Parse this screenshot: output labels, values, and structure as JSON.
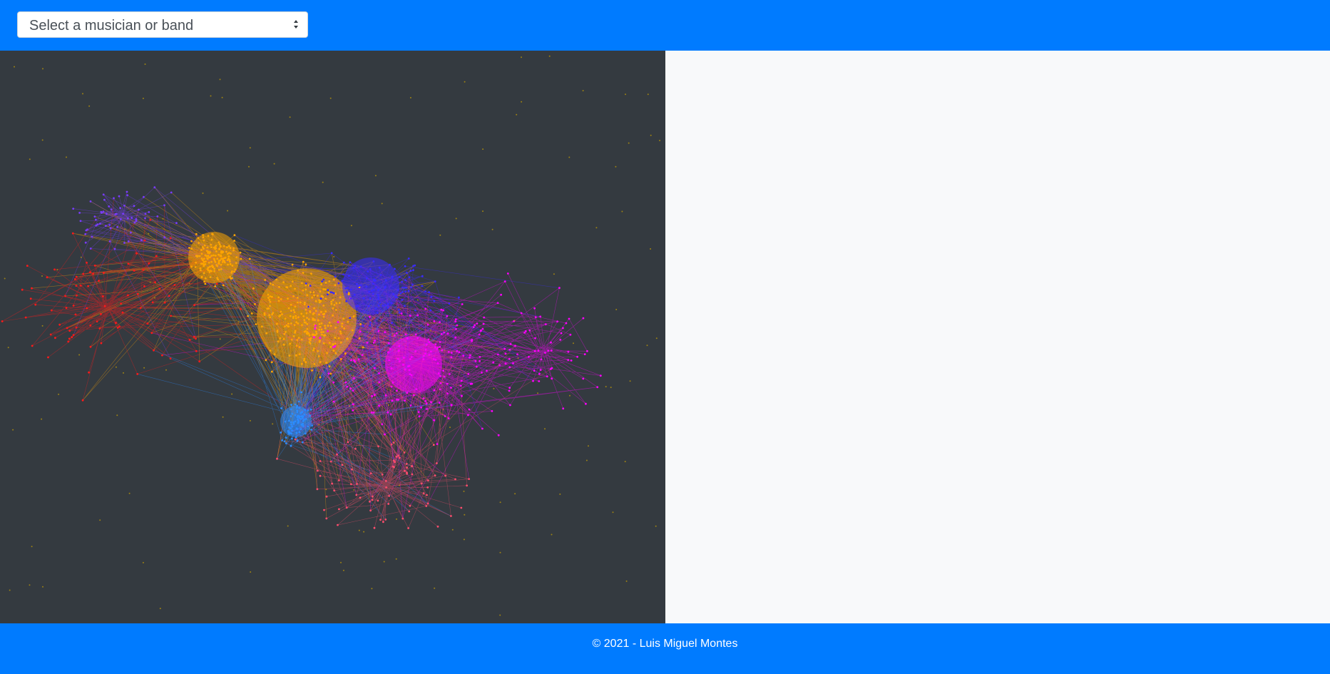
{
  "header": {
    "select": {
      "selected_label": "Select a musician or band",
      "caret_icon": "updown-caret-icon"
    }
  },
  "graph": {
    "background": "#343a40",
    "community_colors": [
      "#ffa500",
      "#ff00ff",
      "#3a2bff",
      "#ff1a1a",
      "#2b8cff",
      "#ff4d6d",
      "#7a3cff",
      "#c8a000"
    ]
  },
  "footer": {
    "text": "© 2021 - Luis Miguel Montes"
  },
  "colors": {
    "navbar": "#007bff",
    "content_bg": "#f8f9fa"
  }
}
